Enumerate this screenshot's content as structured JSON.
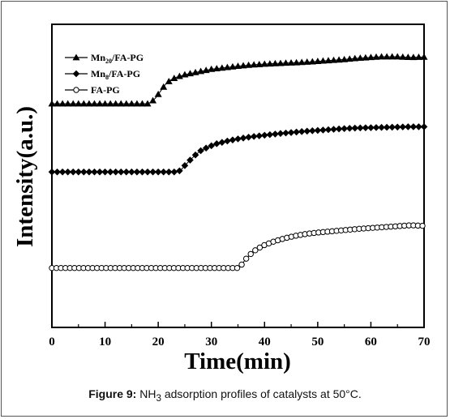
{
  "chart_data": {
    "type": "line",
    "xlabel": "Time(min)",
    "ylabel": "Intensity(a.u.)",
    "xlim": [
      0,
      70
    ],
    "x_ticks": [
      0,
      10,
      20,
      30,
      40,
      50,
      60,
      70
    ],
    "x_tick_labels": [
      "0",
      "10",
      "20",
      "30",
      "40",
      "50",
      "60",
      "70"
    ],
    "y_ticks": "none",
    "legend_position": "top-left",
    "series": [
      {
        "name": "Mn20/FA-PG",
        "name_main": "Mn",
        "name_sub": "20",
        "name_rest": "/FA-PG",
        "marker": "filled-triangle",
        "points": [
          [
            0,
            0.738
          ],
          [
            18,
            0.738
          ],
          [
            18.7,
            0.743
          ],
          [
            19.5,
            0.757
          ],
          [
            20.5,
            0.781
          ],
          [
            21.5,
            0.805
          ],
          [
            22.5,
            0.818
          ],
          [
            23.5,
            0.826
          ],
          [
            25,
            0.834
          ],
          [
            27.5,
            0.843
          ],
          [
            30,
            0.852
          ],
          [
            32.5,
            0.857
          ],
          [
            35,
            0.862
          ],
          [
            37.5,
            0.866
          ],
          [
            40,
            0.869
          ],
          [
            42.5,
            0.871
          ],
          [
            45,
            0.873
          ],
          [
            47.5,
            0.875
          ],
          [
            50,
            0.878
          ],
          [
            52.5,
            0.881
          ],
          [
            55,
            0.884
          ],
          [
            57.5,
            0.888
          ],
          [
            60,
            0.891
          ],
          [
            62,
            0.893
          ],
          [
            65,
            0.893
          ],
          [
            67.5,
            0.891
          ],
          [
            70,
            0.892
          ]
        ]
      },
      {
        "name": "Mn8/FA-PG",
        "name_main": "Mn",
        "name_sub": "8",
        "name_rest": "/FA-PG",
        "marker": "filled-diamond",
        "points": [
          [
            0,
            0.513
          ],
          [
            23.5,
            0.513
          ],
          [
            24.2,
            0.518
          ],
          [
            25,
            0.534
          ],
          [
            26,
            0.552
          ],
          [
            27,
            0.569
          ],
          [
            28,
            0.583
          ],
          [
            29.5,
            0.596
          ],
          [
            31,
            0.606
          ],
          [
            33,
            0.615
          ],
          [
            35,
            0.622
          ],
          [
            37.5,
            0.629
          ],
          [
            40,
            0.634
          ],
          [
            42.5,
            0.639
          ],
          [
            45,
            0.643
          ],
          [
            47.5,
            0.647
          ],
          [
            50,
            0.65
          ],
          [
            52.5,
            0.653
          ],
          [
            55,
            0.656
          ],
          [
            57.5,
            0.658
          ],
          [
            60,
            0.659
          ],
          [
            62.5,
            0.66
          ],
          [
            65,
            0.661
          ],
          [
            67.5,
            0.662
          ],
          [
            70,
            0.662
          ]
        ]
      },
      {
        "name": "FA-PG",
        "name_main": "FA-PG",
        "name_sub": "",
        "name_rest": "",
        "marker": "open-circle",
        "points": [
          [
            0,
            0.196
          ],
          [
            35,
            0.196
          ],
          [
            35.6,
            0.205
          ],
          [
            36.5,
            0.226
          ],
          [
            37.5,
            0.244
          ],
          [
            38.5,
            0.258
          ],
          [
            40,
            0.272
          ],
          [
            42,
            0.285
          ],
          [
            44,
            0.295
          ],
          [
            46,
            0.303
          ],
          [
            48,
            0.309
          ],
          [
            50,
            0.313
          ],
          [
            52.5,
            0.317
          ],
          [
            55,
            0.321
          ],
          [
            57.5,
            0.325
          ],
          [
            60,
            0.328
          ],
          [
            62.5,
            0.331
          ],
          [
            65,
            0.334
          ],
          [
            67.5,
            0.337
          ],
          [
            70,
            0.335
          ]
        ]
      }
    ]
  },
  "caption": {
    "label": "Figure 9:",
    "text_before": " NH",
    "subscript": "3",
    "text_after": " adsorption profiles of catalysts at 50°C."
  }
}
